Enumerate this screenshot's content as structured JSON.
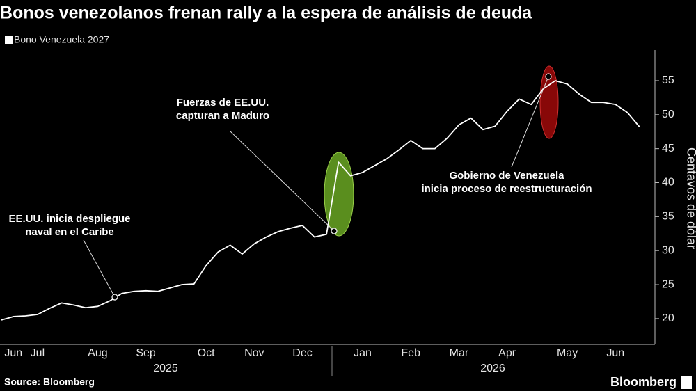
{
  "chart_data": {
    "type": "line",
    "title": "Bonos venezolanos frenan rally a la espera de análisis de deuda",
    "y_label": "Centavos de dólar",
    "source": "Source: Bloomberg",
    "brand": "Bloomberg",
    "categories": [
      null,
      "Jun",
      null,
      "Jul",
      null,
      null,
      null,
      null,
      "Aug",
      null,
      null,
      null,
      "Sep",
      null,
      null,
      null,
      null,
      "Oct",
      null,
      null,
      null,
      "Nov",
      null,
      null,
      null,
      "Dec",
      null,
      null,
      null,
      null,
      "Jan",
      null,
      null,
      null,
      "Feb",
      null,
      null,
      null,
      "Mar",
      null,
      null,
      null,
      "Apr",
      null,
      null,
      null,
      null,
      "May",
      null,
      null,
      null,
      "Jun",
      null,
      null
    ],
    "x_group_labels": [
      "2025",
      "2026"
    ],
    "series": [
      {
        "name": "Bono Venezuela 2027",
        "color": "#ffffff",
        "values": [
          19.8,
          20.3,
          20.4,
          20.6,
          21.5,
          22.3,
          22.0,
          21.6,
          21.8,
          22.6,
          23.7,
          24.0,
          24.1,
          24.0,
          24.5,
          25.0,
          25.1,
          27.8,
          29.8,
          30.8,
          29.5,
          31.0,
          32.0,
          32.8,
          33.3,
          33.7,
          32.0,
          32.4,
          43.0,
          41.0,
          41.5,
          42.5,
          43.5,
          44.8,
          46.2,
          45.0,
          45.0,
          46.5,
          48.5,
          49.5,
          47.8,
          48.3,
          50.5,
          52.3,
          51.5,
          53.8,
          55.0,
          54.5,
          53.0,
          51.8,
          51.8,
          51.5,
          50.3,
          48.2
        ]
      }
    ],
    "ylim": [
      16.2,
      59.5
    ],
    "yticks": [
      20,
      25,
      30,
      35,
      40,
      45,
      50,
      55
    ],
    "grid": false,
    "annotations": [
      {
        "lines": [
          "EE.UU. inicia despliegue",
          "naval en el Caribe"
        ]
      },
      {
        "lines": [
          "Fuerzas de EE.UU.",
          "capturan a Maduro"
        ]
      },
      {
        "lines": [
          "Gobierno de Venezuela",
          "inicia proceso de reestructuración"
        ]
      }
    ]
  }
}
